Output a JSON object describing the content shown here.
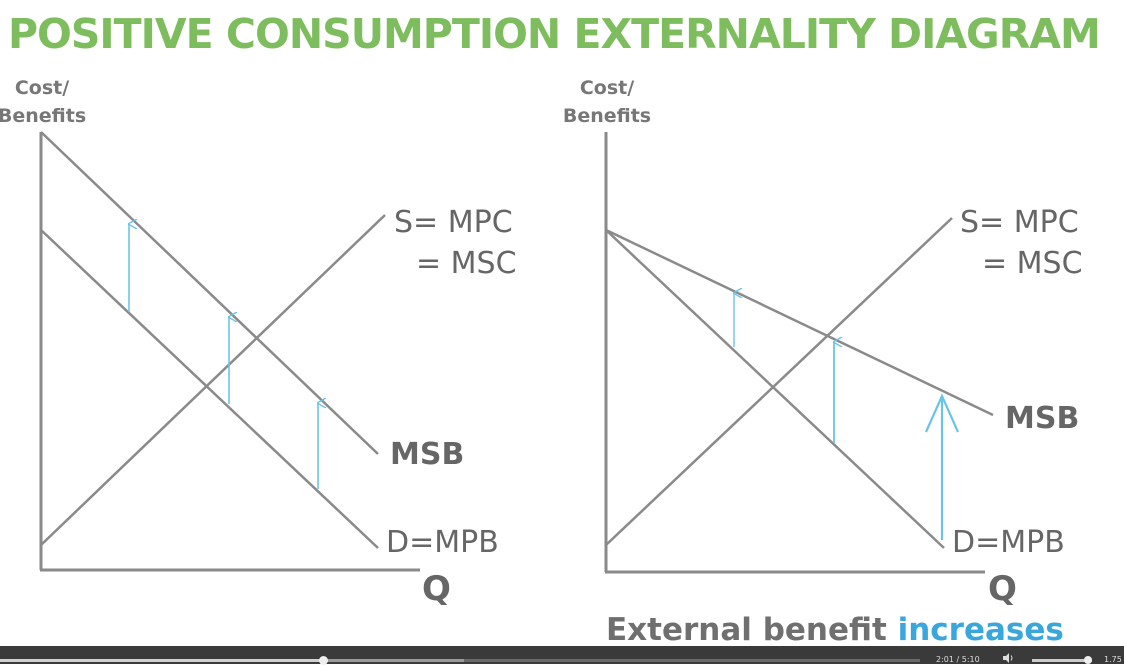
{
  "title": "POSITIVE CONSUMPTION EXTERNALITY DIAGRAM",
  "left_diagram": {
    "y_axis_label_line1": "Cost/",
    "y_axis_label_line2": "Benefits",
    "x_axis_label": "Q",
    "supply_label_line1": "S= MPC",
    "supply_label_line2": "= MSC",
    "msb_label": "MSB",
    "demand_label": "D=MPB"
  },
  "right_diagram": {
    "y_axis_label_line1": "Cost/",
    "y_axis_label_line2": "Benefits",
    "x_axis_label": "Q",
    "supply_label_line1": "S= MPC",
    "supply_label_line2": "= MSC",
    "msb_label": "MSB",
    "demand_label": "D=MPB"
  },
  "caption": {
    "prefix": "External benefit ",
    "highlight": "increases"
  },
  "colors": {
    "title": "#7dbd5d",
    "lines": "#8a8a8a",
    "arrows": "#6cc3ea",
    "highlight": "#3aa7dc"
  },
  "player": {
    "time": "2:01 / 5:10",
    "speed": "1.75",
    "progress_fraction": 0.39,
    "volume_fraction": 0.93,
    "volume_icon": "speaker-icon"
  }
}
